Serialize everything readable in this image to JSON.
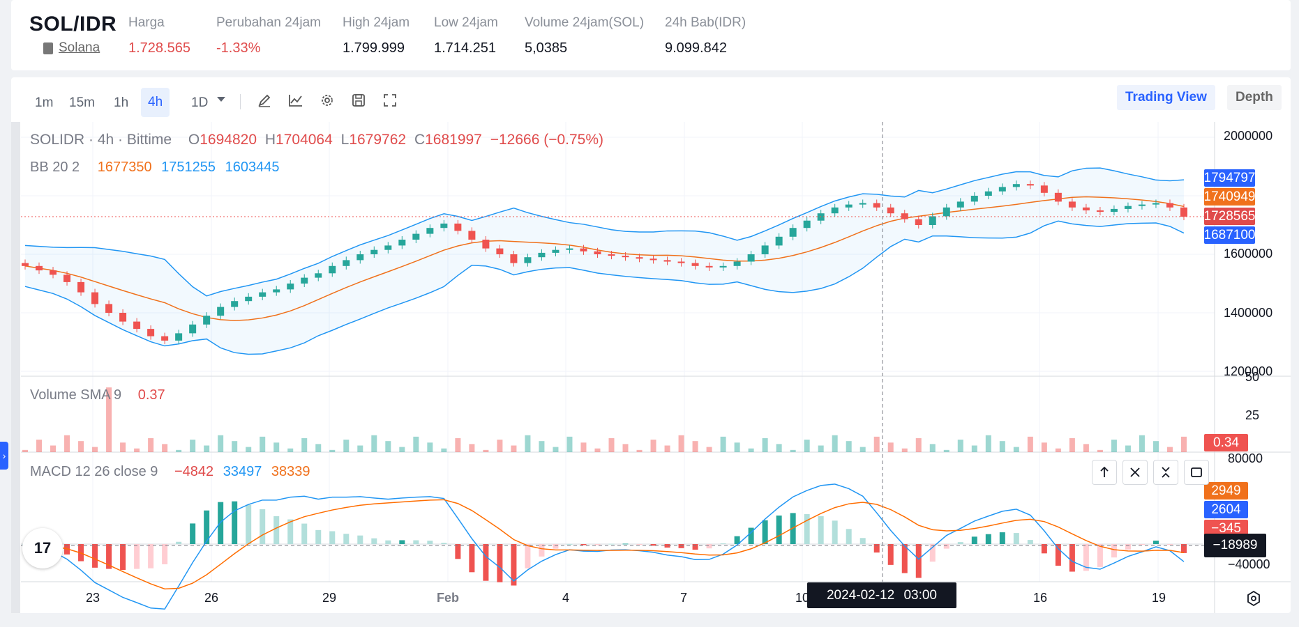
{
  "header": {
    "pair": "SOL/IDR",
    "coin_name": "Solana",
    "stats": [
      {
        "label": "Harga",
        "value": "1.728.565",
        "color": "red"
      },
      {
        "label": "Perubahan 24jam",
        "value": "-1.33%",
        "color": "red"
      },
      {
        "label": "High 24jam",
        "value": "1.799.999",
        "color": "normal"
      },
      {
        "label": "Low 24jam",
        "value": "1.714.251",
        "color": "normal"
      },
      {
        "label": "Volume 24jam(SOL)",
        "value": "5,0385",
        "color": "normal"
      },
      {
        "label": "24h Bab(IDR)",
        "value": "9.099.842",
        "color": "normal"
      }
    ]
  },
  "toolbar": {
    "timeframes": [
      "1m",
      "15m",
      "1h",
      "4h",
      "1D"
    ],
    "active_timeframe": "4h",
    "icons": [
      "pencil-icon",
      "indicator-icon",
      "gear-icon",
      "save-icon",
      "fullscreen-icon"
    ],
    "views": [
      "Trading View",
      "Depth"
    ],
    "active_view": "Trading View"
  },
  "legend": {
    "symbol": "SOLIDR · 4h · Bittime",
    "o_label": "O",
    "o": "1694820",
    "h_label": "H",
    "h": "1704064",
    "l_label": "L",
    "l": "1679762",
    "c_label": "C",
    "c": "1681997",
    "change": "−12666 (−0.75%)",
    "bb_label": "BB 20 2",
    "bb_basis": "1677350",
    "bb_upper": "1751255",
    "bb_lower": "1603445",
    "volume_label": "Volume SMA 9",
    "volume_value": "0.37",
    "macd_label": "MACD 12 26 close 9",
    "macd_hist": "−4842",
    "macd_line": "33497",
    "macd_signal": "38339"
  },
  "price_axis": {
    "ticks": [
      "2000000",
      "1800000",
      "1600000",
      "1400000",
      "1200000"
    ],
    "labels": [
      {
        "text": "1794797",
        "color": "#2962ff"
      },
      {
        "text": "1740949",
        "color": "#f0711c"
      },
      {
        "text": "1728565",
        "color": "#e04b4b"
      },
      {
        "text": "1687100",
        "color": "#2962ff"
      }
    ]
  },
  "volume_axis": {
    "ticks": [
      "50",
      "25"
    ],
    "current": "0.34"
  },
  "macd_axis": {
    "ticks": [
      "80000",
      "−40000"
    ],
    "labels": [
      {
        "text": "2949",
        "color": "#f0711c"
      },
      {
        "text": "2604",
        "color": "#2962ff"
      },
      {
        "text": "−345",
        "color": "#e04b4b"
      },
      {
        "text": "−18989",
        "color": "#131722"
      }
    ]
  },
  "time_axis": {
    "labels": [
      "23",
      "26",
      "29",
      "Feb",
      "4",
      "7",
      "10",
      "16",
      "19"
    ],
    "crosshair_date": "2024-02-12 03:00"
  },
  "colors": {
    "up": "#26a69a",
    "down": "#ef5350",
    "bb_band": "#2196f3",
    "bb_basis": "#f0711c",
    "macd": "#2196f3",
    "signal": "#ff6d00"
  },
  "chart_data": {
    "type": "candlestick",
    "x_range": [
      "2024-01-21",
      "2024-02-20"
    ],
    "candles_close": [
      1560000,
      1545000,
      1530000,
      1505000,
      1470000,
      1430000,
      1400000,
      1370000,
      1345000,
      1320000,
      1305000,
      1330000,
      1360000,
      1390000,
      1420000,
      1440000,
      1455000,
      1470000,
      1480000,
      1500000,
      1520000,
      1535000,
      1560000,
      1580000,
      1600000,
      1615000,
      1630000,
      1650000,
      1670000,
      1690000,
      1705000,
      1680000,
      1650000,
      1620000,
      1600000,
      1570000,
      1590000,
      1605000,
      1615000,
      1620000,
      1610000,
      1600000,
      1595000,
      1590000,
      1585000,
      1580000,
      1575000,
      1570000,
      1560000,
      1555000,
      1560000,
      1575000,
      1600000,
      1630000,
      1660000,
      1690000,
      1715000,
      1740000,
      1760000,
      1770000,
      1775000,
      1760000,
      1740000,
      1720000,
      1700000,
      1730000,
      1760000,
      1780000,
      1800000,
      1815000,
      1830000,
      1840000,
      1835000,
      1810000,
      1780000,
      1760000,
      1750000,
      1745000,
      1755000,
      1765000,
      1770000,
      1775000,
      1760000,
      1728565
    ],
    "volume_max_value": 45
  }
}
